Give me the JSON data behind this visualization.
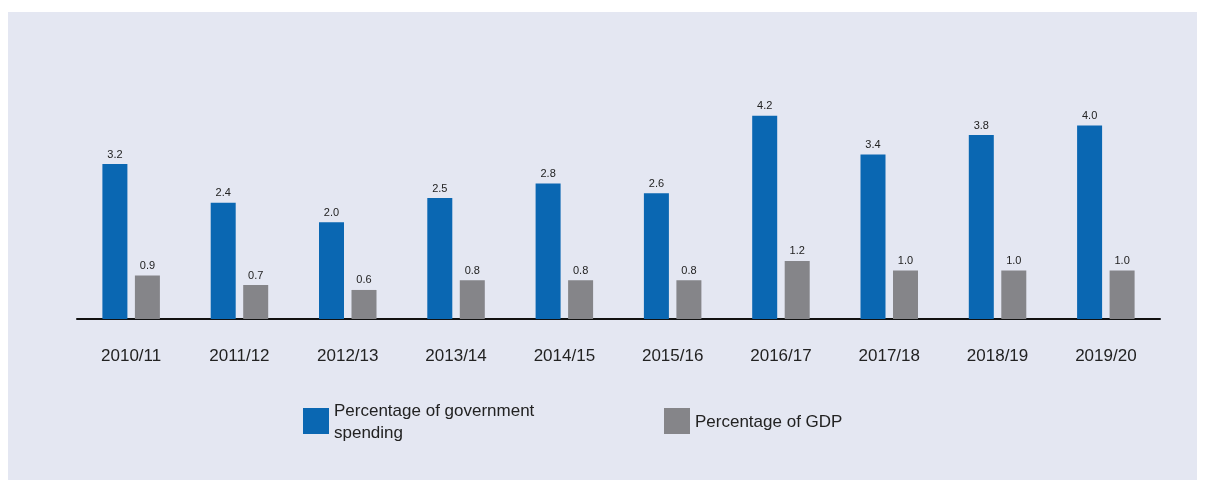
{
  "chart_data": {
    "type": "bar",
    "categories": [
      "2010/11",
      "2011/12",
      "2012/13",
      "2013/14",
      "2014/15",
      "2015/16",
      "2016/17",
      "2017/18",
      "2018/19",
      "2019/20"
    ],
    "series": [
      {
        "name": "Percentage of government spending",
        "color": "#0a67b2",
        "values": [
          3.2,
          2.4,
          2.0,
          2.5,
          2.8,
          2.6,
          4.2,
          3.4,
          3.8,
          4.0
        ],
        "value_labels": [
          "3.2",
          "2.4",
          "2.0",
          "2.5",
          "2.8",
          "2.6",
          "4.2",
          "3.4",
          "3.8",
          "4.0"
        ]
      },
      {
        "name": "Percentage of GDP",
        "color": "#858589",
        "values": [
          0.9,
          0.7,
          0.6,
          0.8,
          0.8,
          0.8,
          1.2,
          1.0,
          1.0,
          1.0
        ],
        "value_labels": [
          "0.9",
          "0.7",
          "0.6",
          "0.8",
          "0.8",
          "0.8",
          "1.2",
          "1.0",
          "1.0",
          "1.0"
        ]
      }
    ],
    "legend": "bottom",
    "grid": false
  }
}
